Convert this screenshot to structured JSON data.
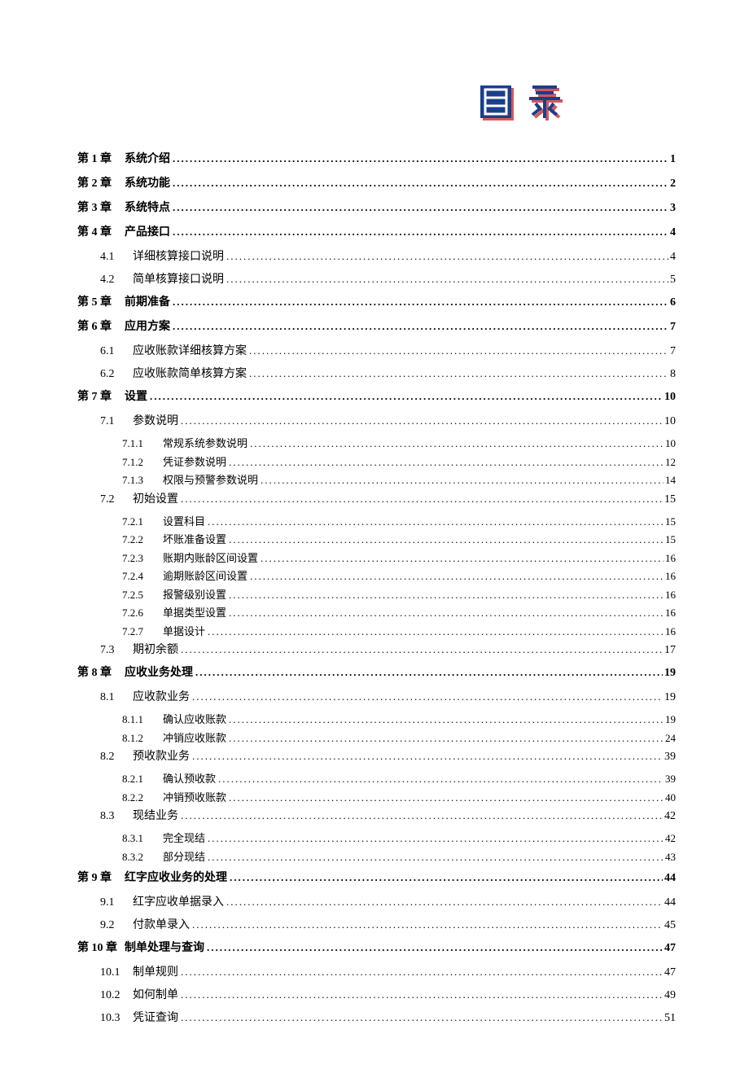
{
  "header_title": "目录",
  "chapters": [
    {
      "number": "第 1 章",
      "title": "系统介绍",
      "page": "1",
      "sections": []
    },
    {
      "number": "第 2 章",
      "title": "系统功能",
      "page": "2",
      "sections": []
    },
    {
      "number": "第 3 章",
      "title": "系统特点",
      "page": "3",
      "sections": []
    },
    {
      "number": "第 4 章",
      "title": "产品接口",
      "page": "4",
      "sections": [
        {
          "number": "4.1",
          "title": "详细核算接口说明",
          "page": "4"
        },
        {
          "number": "4.2",
          "title": "简单核算接口说明",
          "page": "5"
        }
      ]
    },
    {
      "number": "第 5 章",
      "title": "前期准备",
      "page": "6",
      "sections": []
    },
    {
      "number": "第 6 章",
      "title": "应用方案",
      "page": "7",
      "sections": [
        {
          "number": "6.1",
          "title": "应收账款详细核算方案",
          "page": "7"
        },
        {
          "number": "6.2",
          "title": "应收账款简单核算方案",
          "page": "8"
        }
      ]
    },
    {
      "number": "第 7 章",
      "title": "设置",
      "page": "10",
      "sections": [
        {
          "number": "7.1",
          "title": "参数说明",
          "page": "10",
          "subsections": [
            {
              "number": "7.1.1",
              "title": "常规系统参数说明",
              "page": "10"
            },
            {
              "number": "7.1.2",
              "title": "凭证参数说明",
              "page": "12"
            },
            {
              "number": "7.1.3",
              "title": "权限与预警参数说明",
              "page": "14"
            }
          ]
        },
        {
          "number": "7.2",
          "title": "初始设置",
          "page": "15",
          "subsections": [
            {
              "number": "7.2.1",
              "title": "设置科目",
              "page": "15"
            },
            {
              "number": "7.2.2",
              "title": "坏账准备设置",
              "page": "15"
            },
            {
              "number": "7.2.3",
              "title": "账期内账龄区间设置",
              "page": "16"
            },
            {
              "number": "7.2.4",
              "title": "逾期账龄区间设置",
              "page": "16"
            },
            {
              "number": "7.2.5",
              "title": "报警级别设置",
              "page": "16"
            },
            {
              "number": "7.2.6",
              "title": "单据类型设置",
              "page": "16"
            },
            {
              "number": "7.2.7",
              "title": "单据设计",
              "page": "16"
            }
          ]
        },
        {
          "number": "7.3",
          "title": "期初余额",
          "page": "17"
        }
      ]
    },
    {
      "number": "第 8 章",
      "title": "应收业务处理",
      "page": "19",
      "sections": [
        {
          "number": "8.1",
          "title": "应收款业务",
          "page": "19",
          "subsections": [
            {
              "number": "8.1.1",
              "title": "确认应收账款",
              "page": "19"
            },
            {
              "number": "8.1.2",
              "title": "冲销应收账款",
              "page": "24"
            }
          ]
        },
        {
          "number": "8.2",
          "title": "预收款业务",
          "page": "39",
          "subsections": [
            {
              "number": "8.2.1",
              "title": "确认预收款",
              "page": "39"
            },
            {
              "number": "8.2.2",
              "title": "冲销预收账款",
              "page": "40"
            }
          ]
        },
        {
          "number": "8.3",
          "title": "现结业务",
          "page": "42",
          "subsections": [
            {
              "number": "8.3.1",
              "title": "完全现结",
              "page": "42"
            },
            {
              "number": "8.3.2",
              "title": "部分现结",
              "page": "43"
            }
          ]
        }
      ]
    },
    {
      "number": "第 9 章",
      "title": "红字应收业务的处理",
      "page": "44",
      "sections": [
        {
          "number": "9.1",
          "title": "红字应收单据录入",
          "page": "44"
        },
        {
          "number": "9.2",
          "title": "付款单录入",
          "page": "45"
        }
      ]
    },
    {
      "number": "第 10 章",
      "title": "制单处理与查询",
      "page": "47",
      "sections": [
        {
          "number": "10.1",
          "title": "制单规则",
          "page": "47"
        },
        {
          "number": "10.2",
          "title": "如何制单",
          "page": "49"
        },
        {
          "number": "10.3",
          "title": "凭证查询",
          "page": "51"
        }
      ]
    }
  ],
  "colors": {
    "header_main": "#1a3e8c",
    "header_shadow": "#d14545",
    "text": "#000000",
    "background": "#ffffff"
  }
}
